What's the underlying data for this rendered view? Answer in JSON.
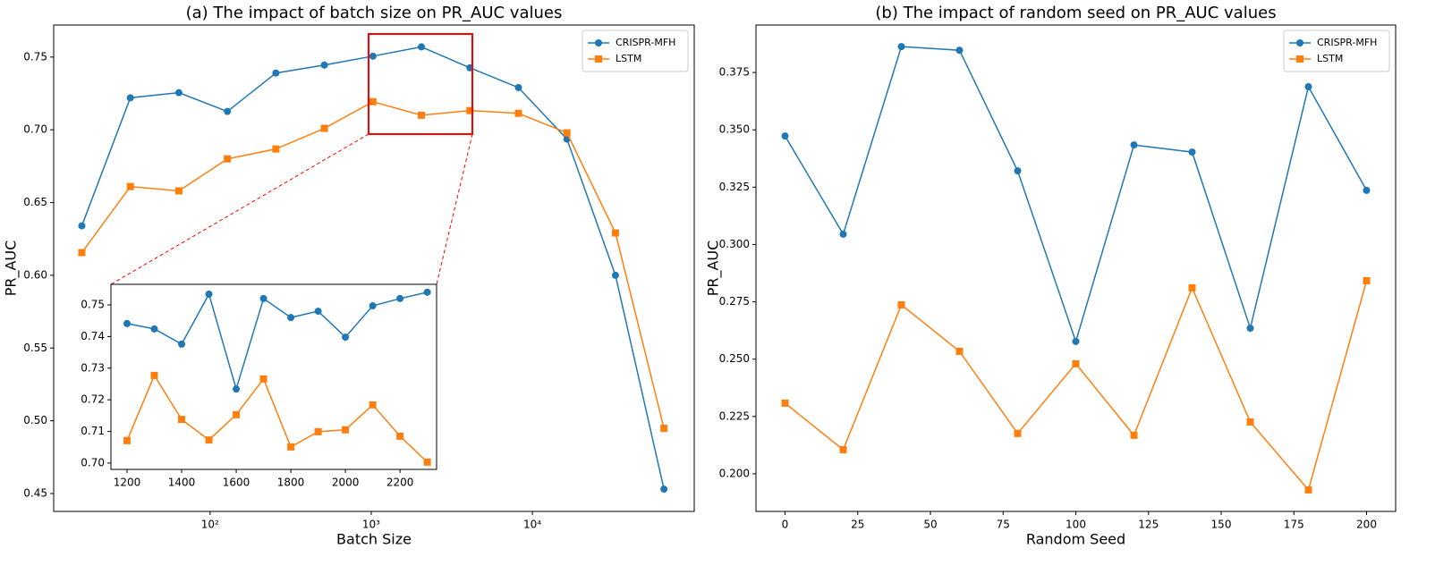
{
  "chart_data": [
    {
      "type": "line",
      "title": "(a) The impact of batch size on PR_AUC values",
      "x_label": "Batch Size",
      "y_label": "PR_AUC",
      "xscale": "log",
      "legend": "upper right",
      "x": [
        16,
        32,
        64,
        128,
        256,
        512,
        1024,
        2048,
        4096,
        8192,
        16384,
        32768,
        65536
      ],
      "series": [
        {
          "name": "CRISPR-MFH",
          "color": "#1f77b4",
          "marker": "circle",
          "values": [
            0.634,
            0.722,
            0.7255,
            0.7126,
            0.739,
            0.7445,
            0.7506,
            0.757,
            0.7426,
            0.729,
            0.6936,
            0.6,
            0.453
          ]
        },
        {
          "name": "LSTM",
          "color": "#ff7f0e",
          "marker": "square",
          "values": [
            0.6156,
            0.661,
            0.658,
            0.68,
            0.6868,
            0.701,
            0.7193,
            0.71,
            0.7132,
            0.7113,
            0.6979,
            0.6291,
            0.4948
          ]
        }
      ],
      "xlim": [
        10.7,
        101000
      ],
      "xticks": [
        {
          "value": 100,
          "label": "10²"
        },
        {
          "value": 1000,
          "label": "10³"
        },
        {
          "value": 10000,
          "label": "10⁴"
        }
      ],
      "ylim": [
        0.4377,
        0.772
      ],
      "yticks": [
        0.45,
        {
          "value": 0.5,
          "label": "0.50"
        },
        0.55,
        {
          "value": 0.6,
          "label": "0.60"
        },
        0.65,
        {
          "value": 0.7,
          "label": "0.70"
        },
        0.75
      ]
    },
    {
      "type": "line",
      "x": [
        1200,
        1300,
        1400,
        1500,
        1600,
        1700,
        1800,
        1900,
        2000,
        2100,
        2200,
        2300
      ],
      "series": [
        {
          "color": "#1f77b4",
          "marker": "circle",
          "values": [
            0.7441,
            0.7424,
            0.7376,
            0.7534,
            0.7234,
            0.752,
            0.746,
            0.748,
            0.7398,
            0.7497,
            0.752,
            0.754
          ]
        },
        {
          "color": "#ff7f0e",
          "marker": "square",
          "values": [
            0.7071,
            0.7277,
            0.7138,
            0.7073,
            0.7153,
            0.7266,
            0.7051,
            0.7099,
            0.7105,
            0.7184,
            0.7085,
            0.7003
          ]
        }
      ],
      "xlim": [
        1141,
        2334
      ],
      "xticks": [
        1200,
        1400,
        1600,
        1800,
        2000,
        2200
      ],
      "ylim": [
        0.698,
        0.7565
      ],
      "yticks": [
        {
          "value": 0.7,
          "label": "0.70"
        },
        0.71,
        0.72,
        0.73,
        0.74,
        0.75
      ]
    },
    {
      "type": "line",
      "title": "(b) The impact of random seed on PR_AUC values",
      "x_label": "Random Seed",
      "y_label": "PR_AUC",
      "legend": "upper right",
      "x": [
        0,
        20,
        40,
        60,
        80,
        100,
        120,
        140,
        160,
        180,
        200
      ],
      "series": [
        {
          "name": "CRISPR-MFH",
          "color": "#1f77b4",
          "marker": "circle",
          "values": [
            0.3473,
            0.3045,
            0.3863,
            0.3847,
            0.3321,
            0.2577,
            0.3434,
            0.3403,
            0.2635,
            0.3688,
            0.3236
          ]
        },
        {
          "name": "LSTM",
          "color": "#ff7f0e",
          "marker": "square",
          "values": [
            0.2308,
            0.2105,
            0.2737,
            0.2534,
            0.2176,
            0.248,
            0.2168,
            0.2811,
            0.2226,
            0.193,
            0.2842
          ]
        }
      ],
      "xlim": [
        -10,
        210
      ],
      "xticks": [
        0,
        25,
        50,
        75,
        100,
        125,
        150,
        175,
        200
      ],
      "ylim": [
        0.1836,
        0.3957
      ],
      "yticks": [
        {
          "value": 0.2,
          "label": "0.200"
        },
        0.225,
        {
          "value": 0.25,
          "label": "0.250"
        },
        0.275,
        {
          "value": 0.3,
          "label": "0.300"
        },
        0.325,
        {
          "value": 0.35,
          "label": "0.350"
        },
        0.375
      ]
    }
  ]
}
